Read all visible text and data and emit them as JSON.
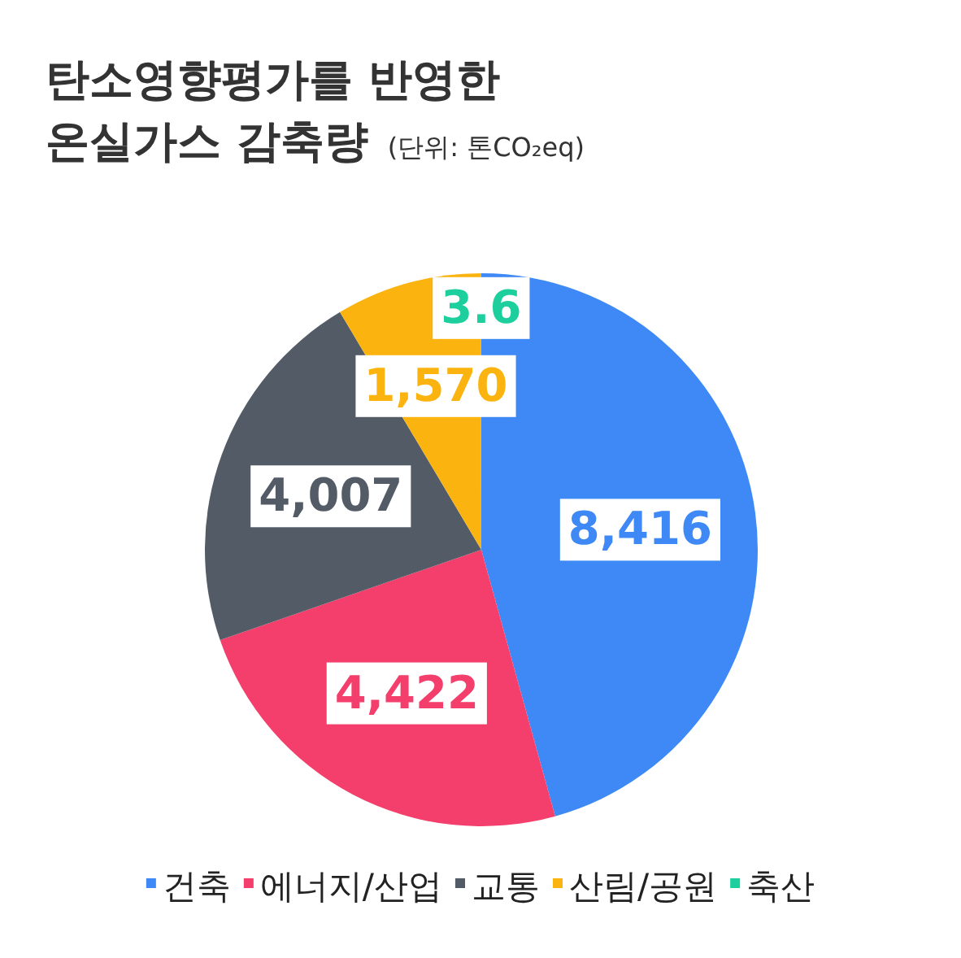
{
  "chart_data": {
    "type": "pie",
    "title": "탄소영향평가를 반영한\n온실가스 감축량",
    "subtitle": "(단위: 톤CO₂eq)",
    "categories": [
      "건축",
      "에너지/산업",
      "교통",
      "산림/공원",
      "축산"
    ],
    "values": [
      8416,
      4422,
      4007,
      1570,
      3.6
    ],
    "colors": [
      "#3e89f6",
      "#f43f6c",
      "#535c66",
      "#fbb40f",
      "#1ccf9c"
    ],
    "value_labels": [
      "8,416",
      "4,422",
      "4,007",
      "1,570",
      "3.6"
    ],
    "legend": "bottom"
  }
}
